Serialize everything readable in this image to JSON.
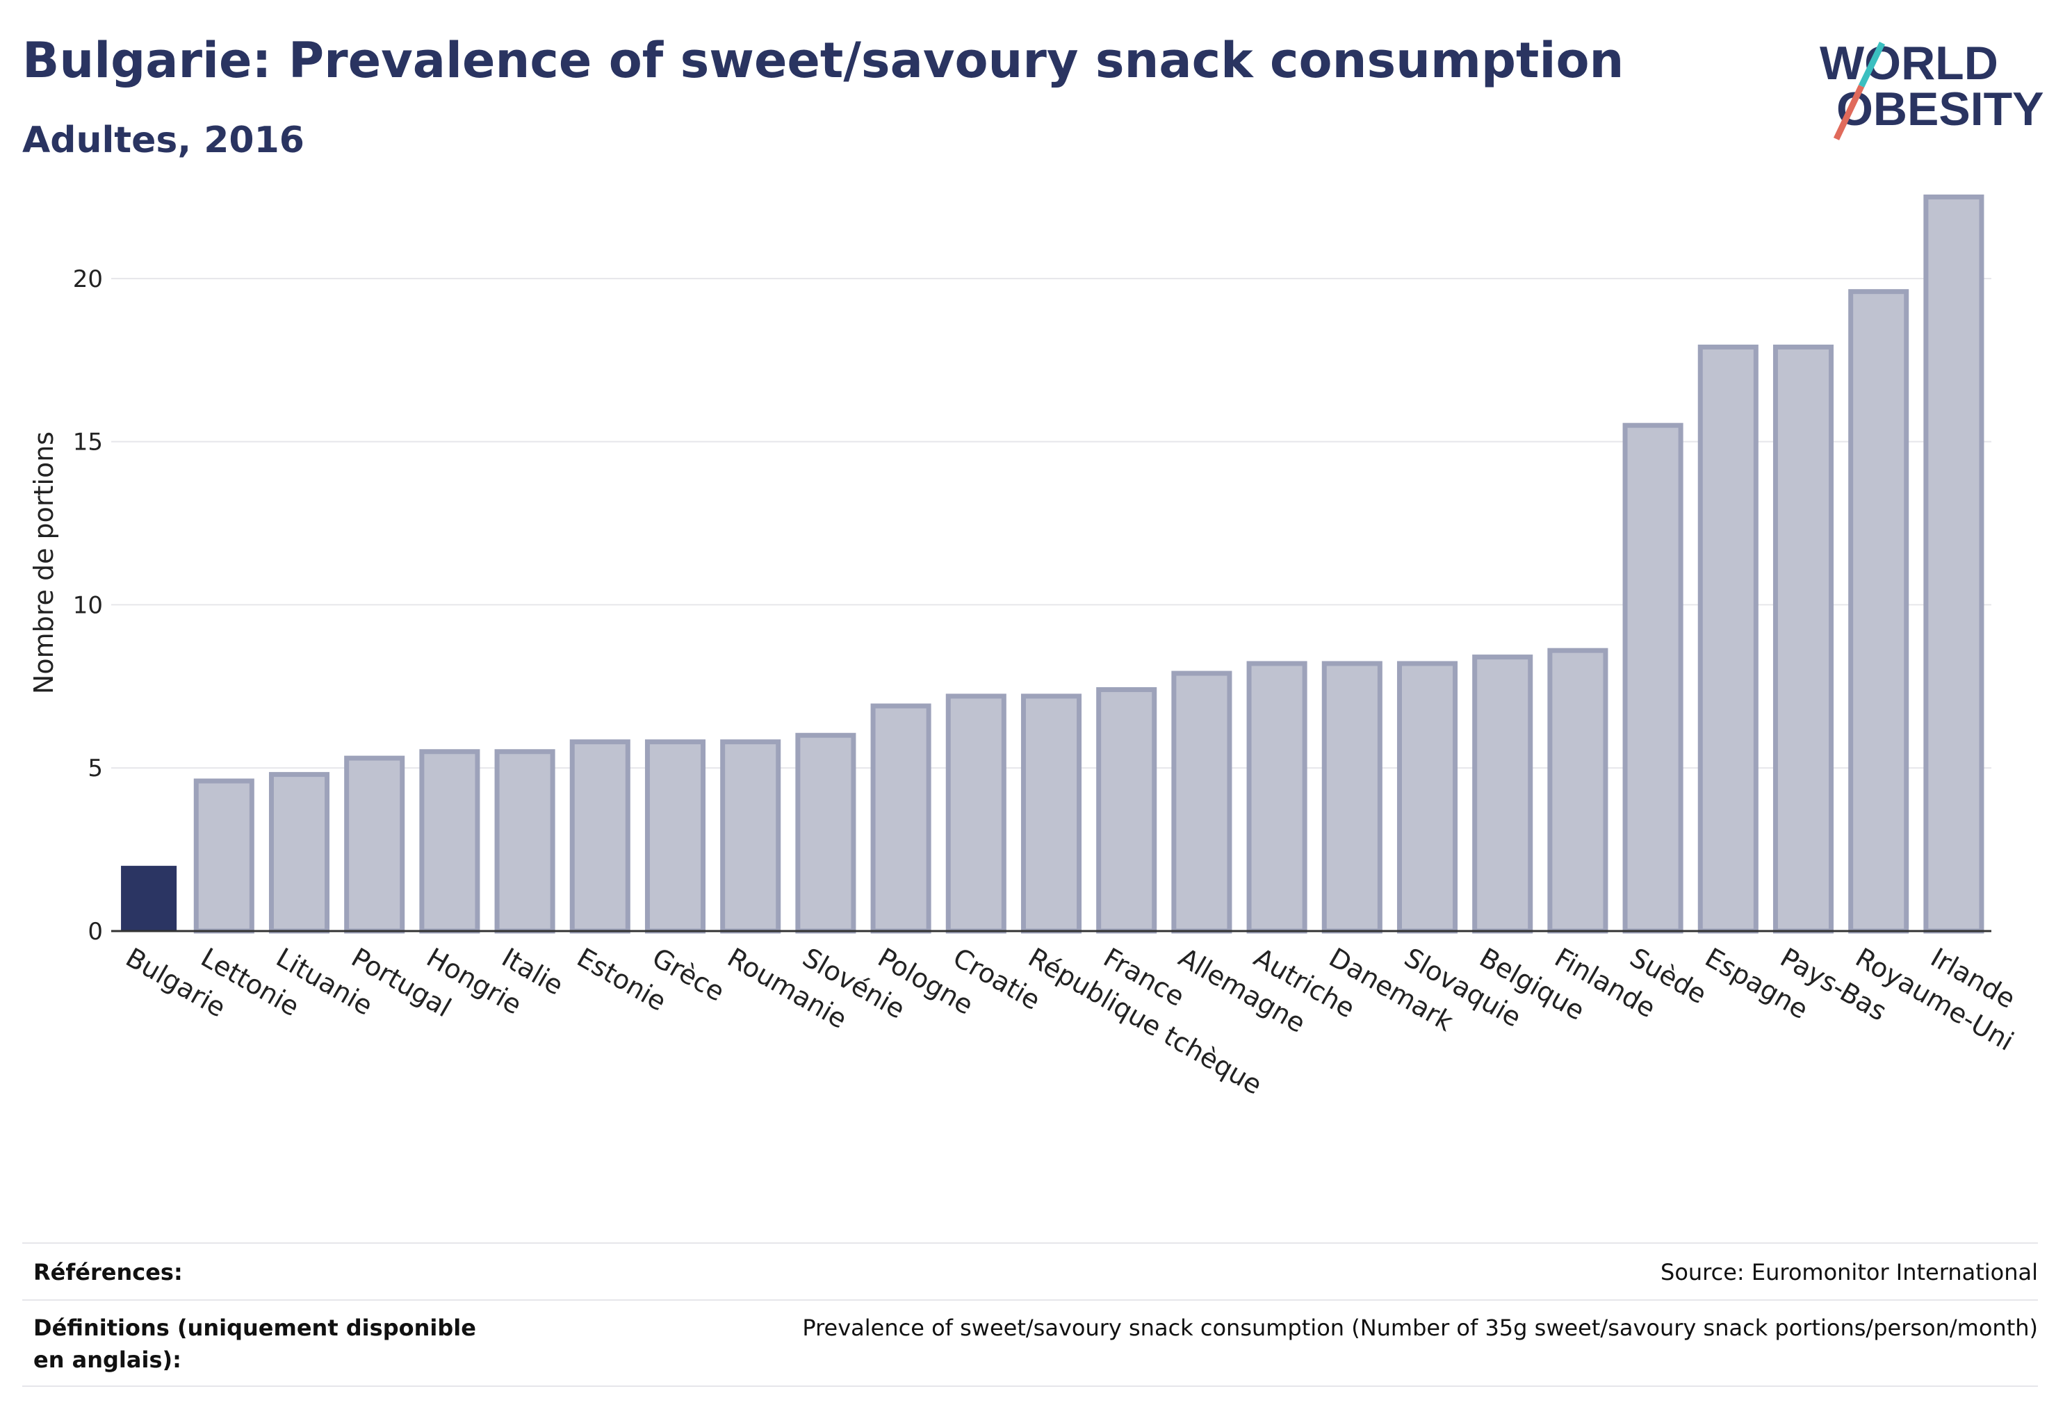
{
  "header": {
    "title": "Bulgarie: Prevalence of sweet/savoury snack consumption",
    "subtitle": "Adultes, 2016"
  },
  "logo": {
    "line1": "WORLD",
    "line2": "OBESITY",
    "color_text": "#2a3461",
    "color_accent_teal": "#3bbfc0",
    "color_accent_red": "#e06a5b"
  },
  "chart_data": {
    "type": "bar",
    "categories": [
      "Bulgarie",
      "Lettonie",
      "Lituanie",
      "Portugal",
      "Hongrie",
      "Italie",
      "Estonie",
      "Grèce",
      "Roumanie",
      "Slovénie",
      "Pologne",
      "Croatie",
      "République tchèque",
      "France",
      "Allemagne",
      "Autriche",
      "Danemark",
      "Slovaquie",
      "Belgique",
      "Finlande",
      "Suède",
      "Espagne",
      "Pays-Bas",
      "Royaume-Uni",
      "Irlande"
    ],
    "values": [
      2.0,
      4.6,
      4.8,
      5.3,
      5.5,
      5.5,
      5.8,
      5.8,
      5.8,
      6.0,
      6.9,
      7.2,
      7.2,
      7.4,
      7.9,
      8.2,
      8.2,
      8.2,
      8.4,
      8.6,
      15.5,
      17.9,
      17.9,
      19.6,
      22.5
    ],
    "highlight_category": "Bulgarie",
    "ylabel": "Nombre de portions",
    "xlabel": "",
    "ylim": [
      0,
      23
    ],
    "yticks": [
      0,
      5,
      10,
      15,
      20
    ],
    "grid": true,
    "legend": "none",
    "colors": {
      "highlight": "#2b3563",
      "bar_fill": "#bfc2d0",
      "bar_stroke": "#9da2ba",
      "grid": "#e6e6ea",
      "axis": "#333333"
    }
  },
  "footer": {
    "references_label": "Références:",
    "references_value": "Source: Euromonitor International",
    "definitions_label": "Définitions (uniquement disponible en anglais):",
    "definitions_value": "Prevalence of sweet/savoury snack consumption (Number of 35g sweet/savoury snack portions/person/month)"
  }
}
